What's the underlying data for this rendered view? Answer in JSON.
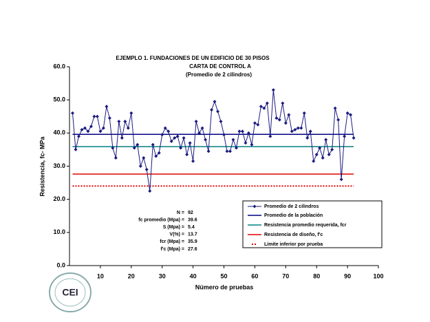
{
  "chart_data": {
    "type": "line",
    "title": "EJEMPLO 1.  FUNDACIONES DE UN EDIFICIO DE 30 PISOS",
    "subtitle": "CARTA DE CONTROL A",
    "subtitle2": "(Promedio de 2 cilindros)",
    "x_label": "Número de pruebas",
    "y_label": "Resistencia, fc- MPa",
    "xlim": [
      0,
      100
    ],
    "xticks": [
      10,
      20,
      30,
      40,
      50,
      60,
      70,
      80,
      90,
      100
    ],
    "ylim": [
      0,
      60
    ],
    "yticks": [
      {
        "value": 0,
        "label": "0.0"
      },
      {
        "value": 10,
        "label": "10.0"
      },
      {
        "value": 20,
        "label": "20.0"
      },
      {
        "value": 30,
        "label": "30.0"
      },
      {
        "value": 40,
        "label": "40.0"
      },
      {
        "value": 50,
        "label": "50.0"
      },
      {
        "value": 60,
        "label": "60.0"
      }
    ],
    "x": [
      1,
      2,
      3,
      4,
      5,
      6,
      7,
      8,
      9,
      10,
      11,
      12,
      13,
      14,
      15,
      16,
      17,
      18,
      19,
      20,
      21,
      22,
      23,
      24,
      25,
      26,
      27,
      28,
      29,
      30,
      31,
      32,
      33,
      34,
      35,
      36,
      37,
      38,
      39,
      40,
      41,
      42,
      43,
      44,
      45,
      46,
      47,
      48,
      49,
      50,
      51,
      52,
      53,
      54,
      55,
      56,
      57,
      58,
      59,
      60,
      61,
      62,
      63,
      64,
      65,
      66,
      67,
      68,
      69,
      70,
      71,
      72,
      73,
      74,
      75,
      76,
      77,
      78,
      79,
      80,
      81,
      82,
      83,
      84,
      85,
      86,
      87,
      88,
      89,
      90,
      91,
      92
    ],
    "series": [
      {
        "name": "Promedio de 2 cilindros",
        "color": "#1a1a80",
        "values": [
          46,
          35,
          39,
          41,
          41.5,
          40.5,
          42,
          45,
          45,
          40.5,
          41.5,
          48,
          44.5,
          35.5,
          32.5,
          43.5,
          38.5,
          43.5,
          41.5,
          46,
          35.5,
          36.5,
          30,
          32.5,
          29,
          22.5,
          36.5,
          33,
          34,
          39.5,
          41.5,
          40.5,
          37.5,
          38.5,
          39,
          35.5,
          38.5,
          33.5,
          37,
          31.5,
          43.5,
          40,
          41.5,
          38,
          34.5,
          47,
          49.5,
          46.5,
          43.5,
          39.5,
          34.5,
          34.5,
          38,
          35.5,
          40.5,
          40.5,
          37,
          40,
          36.5,
          43,
          42.5,
          48,
          47.5,
          49,
          39,
          53,
          44.5,
          44,
          49,
          43,
          45.5,
          40.5,
          41,
          41.5,
          41.5,
          46,
          38.5,
          40.5,
          31.5,
          33.5,
          35.5,
          32.5,
          38,
          33.5,
          35,
          47.5,
          44,
          26,
          39,
          46,
          45.5,
          38.5
        ]
      }
    ],
    "reference_lines": [
      {
        "name": "Promedio de la población",
        "color": "#000080",
        "value": 39.6,
        "dashed": false
      },
      {
        "name": "Resistencia promedio requerida, fcr",
        "color": "#008080",
        "value": 35.9,
        "dashed": false
      },
      {
        "name": "Resistencia de diseño, f'c",
        "color": "#e00000",
        "value": 27.6,
        "dashed": false
      },
      {
        "name": "Limite inferior por prueba",
        "color": "#e00000",
        "value": 24,
        "dashed": true
      }
    ],
    "stats": [
      {
        "label": "N =",
        "value": 92
      },
      {
        "label": "fc promedio (Mpa) =",
        "value": 39.6
      },
      {
        "label": "S (Mpa) =",
        "value": 5.4
      },
      {
        "label": "V(%) =",
        "value": 13.7
      },
      {
        "label": "fcr (Mpa) =",
        "value": 35.9
      },
      {
        "label": "f'c (Mpa) =",
        "value": 27.6
      }
    ],
    "logo_text": "CEI"
  }
}
